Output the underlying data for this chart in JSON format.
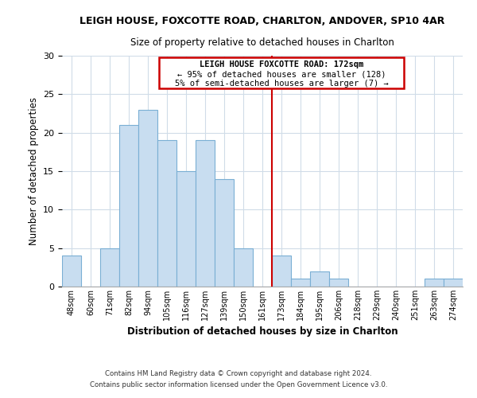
{
  "title": "LEIGH HOUSE, FOXCOTTE ROAD, CHARLTON, ANDOVER, SP10 4AR",
  "subtitle": "Size of property relative to detached houses in Charlton",
  "xlabel": "Distribution of detached houses by size in Charlton",
  "ylabel": "Number of detached properties",
  "bar_labels": [
    "48sqm",
    "60sqm",
    "71sqm",
    "82sqm",
    "94sqm",
    "105sqm",
    "116sqm",
    "127sqm",
    "139sqm",
    "150sqm",
    "161sqm",
    "173sqm",
    "184sqm",
    "195sqm",
    "206sqm",
    "218sqm",
    "229sqm",
    "240sqm",
    "251sqm",
    "263sqm",
    "274sqm"
  ],
  "bar_values": [
    4,
    0,
    5,
    21,
    23,
    19,
    15,
    19,
    14,
    5,
    0,
    4,
    1,
    2,
    1,
    0,
    0,
    0,
    0,
    1,
    1
  ],
  "bar_color": "#c8ddf0",
  "bar_edgecolor": "#7aafd4",
  "vline_index": 11,
  "vline_color": "#cc0000",
  "ylim": [
    0,
    30
  ],
  "yticks": [
    0,
    5,
    10,
    15,
    20,
    25,
    30
  ],
  "annotation_title": "LEIGH HOUSE FOXCOTTE ROAD: 172sqm",
  "annotation_line1": "← 95% of detached houses are smaller (128)",
  "annotation_line2": "5% of semi-detached houses are larger (7) →",
  "annotation_box_color": "#ffffff",
  "annotation_box_edgecolor": "#cc0000",
  "footer_line1": "Contains HM Land Registry data © Crown copyright and database right 2024.",
  "footer_line2": "Contains public sector information licensed under the Open Government Licence v3.0.",
  "background_color": "#ffffff",
  "grid_color": "#d0dce8"
}
